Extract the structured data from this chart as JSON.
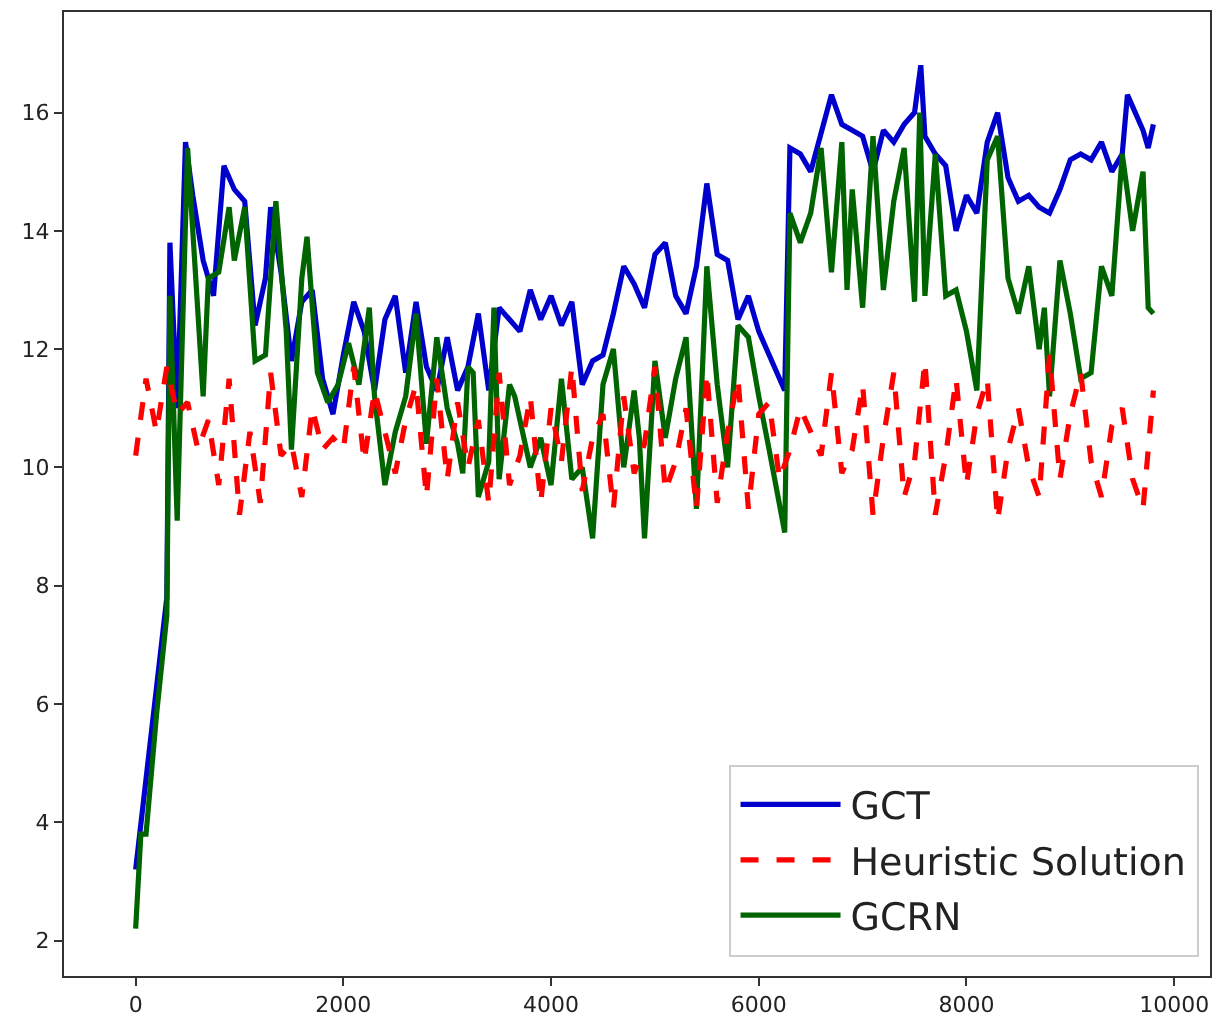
{
  "chart_data": {
    "type": "line",
    "xlim": [
      -690,
      10345
    ],
    "ylim": [
      1.4,
      17.7
    ],
    "xticks": [
      0,
      2000,
      4000,
      6000,
      8000,
      10000
    ],
    "yticks": [
      2,
      4,
      6,
      8,
      10,
      12,
      14,
      16
    ],
    "legend": "bottom right",
    "series": [
      {
        "name": "GCT",
        "color": "#0000cc",
        "line_style": "solid",
        "x": [
          0,
          150,
          300,
          330,
          400,
          480,
          550,
          650,
          750,
          850,
          950,
          1050,
          1150,
          1250,
          1300,
          1400,
          1500,
          1600,
          1700,
          1800,
          1900,
          2000,
          2100,
          2200,
          2300,
          2400,
          2500,
          2600,
          2700,
          2800,
          2900,
          3000,
          3100,
          3200,
          3300,
          3400,
          3500,
          3600,
          3700,
          3800,
          3900,
          4000,
          4100,
          4200,
          4300,
          4400,
          4500,
          4600,
          4700,
          4800,
          4900,
          5000,
          5100,
          5200,
          5300,
          5400,
          5500,
          5600,
          5700,
          5800,
          5900,
          6000,
          6100,
          6250,
          6300,
          6400,
          6500,
          6700,
          6800,
          6900,
          7000,
          7100,
          7200,
          7300,
          7400,
          7500,
          7560,
          7600,
          7700,
          7800,
          7900,
          8000,
          8100,
          8200,
          8300,
          8400,
          8500,
          8600,
          8700,
          8800,
          8900,
          9000,
          9100,
          9200,
          9300,
          9400,
          9500,
          9550,
          9600,
          9700,
          9750,
          9800
        ],
        "values": [
          3.2,
          5.5,
          7.8,
          13.8,
          11,
          15.5,
          14.6,
          13.5,
          12.9,
          15.1,
          14.7,
          14.5,
          12.4,
          13.2,
          14.4,
          13.3,
          11.8,
          12.8,
          13.0,
          11.5,
          10.9,
          11.9,
          12.8,
          12.3,
          11.3,
          12.5,
          12.9,
          11.6,
          12.8,
          11.7,
          11.3,
          12.2,
          11.3,
          11.7,
          12.6,
          11.3,
          12.7,
          12.5,
          12.3,
          13.0,
          12.5,
          12.9,
          12.4,
          12.8,
          11.4,
          11.8,
          11.9,
          12.6,
          13.4,
          13.1,
          12.7,
          13.6,
          13.8,
          12.9,
          12.6,
          13.4,
          14.8,
          13.6,
          13.5,
          12.5,
          12.9,
          12.3,
          11.9,
          11.3,
          15.4,
          15.3,
          15.0,
          16.3,
          15.8,
          15.7,
          15.6,
          15.0,
          15.7,
          15.5,
          15.8,
          16.0,
          16.8,
          15.6,
          15.3,
          15.1,
          14.0,
          14.6,
          14.3,
          15.5,
          16.0,
          14.9,
          14.5,
          14.6,
          14.4,
          14.3,
          14.7,
          15.2,
          15.3,
          15.2,
          15.5,
          15.0,
          15.3,
          16.3,
          16.1,
          15.7,
          15.4,
          15.8
        ]
      },
      {
        "name": "Heuristic Solution",
        "color": "#ff0000",
        "line_style": "dashed",
        "x": [
          0,
          100,
          200,
          300,
          400,
          500,
          600,
          700,
          800,
          900,
          1000,
          1100,
          1200,
          1300,
          1400,
          1500,
          1600,
          1700,
          1800,
          1900,
          2000,
          2100,
          2200,
          2300,
          2400,
          2500,
          2600,
          2700,
          2800,
          2900,
          3000,
          3100,
          3200,
          3300,
          3400,
          3500,
          3600,
          3700,
          3800,
          3900,
          4000,
          4100,
          4200,
          4300,
          4400,
          4500,
          4600,
          4700,
          4800,
          4900,
          5000,
          5100,
          5200,
          5300,
          5400,
          5500,
          5600,
          5700,
          5800,
          5900,
          6000,
          6100,
          6200,
          6300,
          6400,
          6500,
          6600,
          6700,
          6800,
          6900,
          7000,
          7100,
          7200,
          7300,
          7400,
          7500,
          7600,
          7700,
          7800,
          7900,
          8000,
          8100,
          8200,
          8300,
          8400,
          8500,
          8600,
          8700,
          8800,
          8900,
          9000,
          9100,
          9200,
          9300,
          9400,
          9500,
          9600,
          9700,
          9800
        ],
        "values": [
          10.2,
          11.5,
          10.6,
          11.7,
          10.9,
          11.1,
          10.3,
          10.8,
          9.7,
          11.5,
          9.2,
          10.6,
          9.4,
          11.6,
          10.2,
          10.4,
          9.5,
          11.0,
          10.3,
          10.5,
          10.3,
          11.7,
          10.1,
          11.3,
          10.6,
          9.9,
          10.8,
          11.4,
          9.5,
          11.5,
          9.8,
          11.1,
          10.0,
          10.8,
          9.4,
          11.6,
          9.7,
          10.2,
          11.2,
          9.4,
          11.0,
          10.1,
          11.7,
          9.6,
          10.5,
          10.9,
          9.3,
          11.2,
          9.9,
          10.4,
          11.7,
          9.6,
          10.1,
          11.0,
          9.3,
          11.6,
          9.4,
          10.6,
          11.5,
          9.3,
          10.9,
          11.1,
          9.8,
          10.3,
          11.0,
          10.6,
          10.2,
          11.6,
          9.9,
          10.3,
          11.4,
          9.2,
          10.5,
          11.6,
          9.5,
          10.1,
          11.8,
          9.2,
          10.2,
          11.5,
          9.7,
          10.9,
          11.5,
          9.1,
          10.3,
          11.0,
          10.0,
          9.5,
          11.9,
          9.8,
          10.9,
          11.6,
          10.1,
          9.5,
          10.7,
          11.0,
          9.8,
          9.3,
          11.3
        ]
      },
      {
        "name": "GCRN",
        "color": "#006400",
        "line_style": "solid",
        "x": [
          0,
          50,
          100,
          200,
          300,
          330,
          400,
          500,
          550,
          650,
          700,
          800,
          900,
          950,
          1050,
          1150,
          1250,
          1350,
          1450,
          1500,
          1600,
          1650,
          1750,
          1850,
          1950,
          2050,
          2150,
          2250,
          2300,
          2400,
          2500,
          2600,
          2700,
          2800,
          2900,
          3000,
          3100,
          3150,
          3200,
          3250,
          3300,
          3400,
          3450,
          3500,
          3600,
          3650,
          3800,
          3900,
          4000,
          4100,
          4200,
          4300,
          4400,
          4500,
          4600,
          4700,
          4800,
          4850,
          4900,
          5000,
          5100,
          5200,
          5300,
          5400,
          5500,
          5600,
          5700,
          5800,
          5900,
          6000,
          6100,
          6250,
          6300,
          6400,
          6500,
          6600,
          6700,
          6800,
          6850,
          6900,
          7000,
          7100,
          7200,
          7300,
          7400,
          7500,
          7550,
          7600,
          7700,
          7800,
          7900,
          8000,
          8100,
          8200,
          8300,
          8400,
          8500,
          8600,
          8700,
          8750,
          8800,
          8900,
          9000,
          9100,
          9200,
          9300,
          9400,
          9500,
          9600,
          9700,
          9750,
          9800
        ],
        "values": [
          2.2,
          3.8,
          3.8,
          5.8,
          7.5,
          12.9,
          9.1,
          15.4,
          14.0,
          11.2,
          13.2,
          13.3,
          14.4,
          13.5,
          14.4,
          11.8,
          11.9,
          14.5,
          12.3,
          10.3,
          13.2,
          13.9,
          11.6,
          11.1,
          11.4,
          12.1,
          11.4,
          12.7,
          11.2,
          9.7,
          10.6,
          11.2,
          12.6,
          10.4,
          12.2,
          11.0,
          10.4,
          9.9,
          11.7,
          11.6,
          9.5,
          10.1,
          12.7,
          9.8,
          11.4,
          11.2,
          10.0,
          10.5,
          9.7,
          11.5,
          9.8,
          10.0,
          8.8,
          11.4,
          12.0,
          10.0,
          11.3,
          10.5,
          8.8,
          11.8,
          10.5,
          11.5,
          12.2,
          9.3,
          13.4,
          11.4,
          10.0,
          12.4,
          12.2,
          11.2,
          10.3,
          8.9,
          14.3,
          13.8,
          14.3,
          15.4,
          13.3,
          15.5,
          13.0,
          14.7,
          12.7,
          15.6,
          13.0,
          14.5,
          15.4,
          12.8,
          16.0,
          12.9,
          15.3,
          12.9,
          13.0,
          12.3,
          11.3,
          15.2,
          15.6,
          13.2,
          12.6,
          13.4,
          12.0,
          12.7,
          11.2,
          13.5,
          12.6,
          11.5,
          11.6,
          13.4,
          12.9,
          15.3,
          14.0,
          15.0,
          12.7,
          12.6
        ]
      }
    ]
  }
}
